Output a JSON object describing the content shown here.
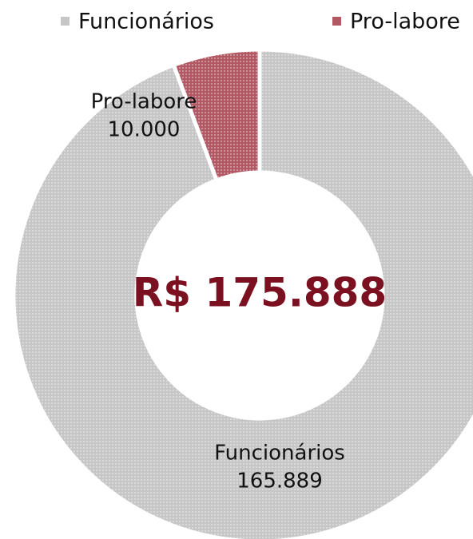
{
  "chart_data": {
    "type": "donut",
    "center_label": "R$ 175.888",
    "categories": [
      "Funcionários",
      "Pro-labore"
    ],
    "values": [
      165889,
      10000
    ],
    "value_labels": [
      "165.889",
      "10.000"
    ],
    "colors": [
      "#c6c6c6",
      "#b25862"
    ],
    "legend": "top"
  }
}
